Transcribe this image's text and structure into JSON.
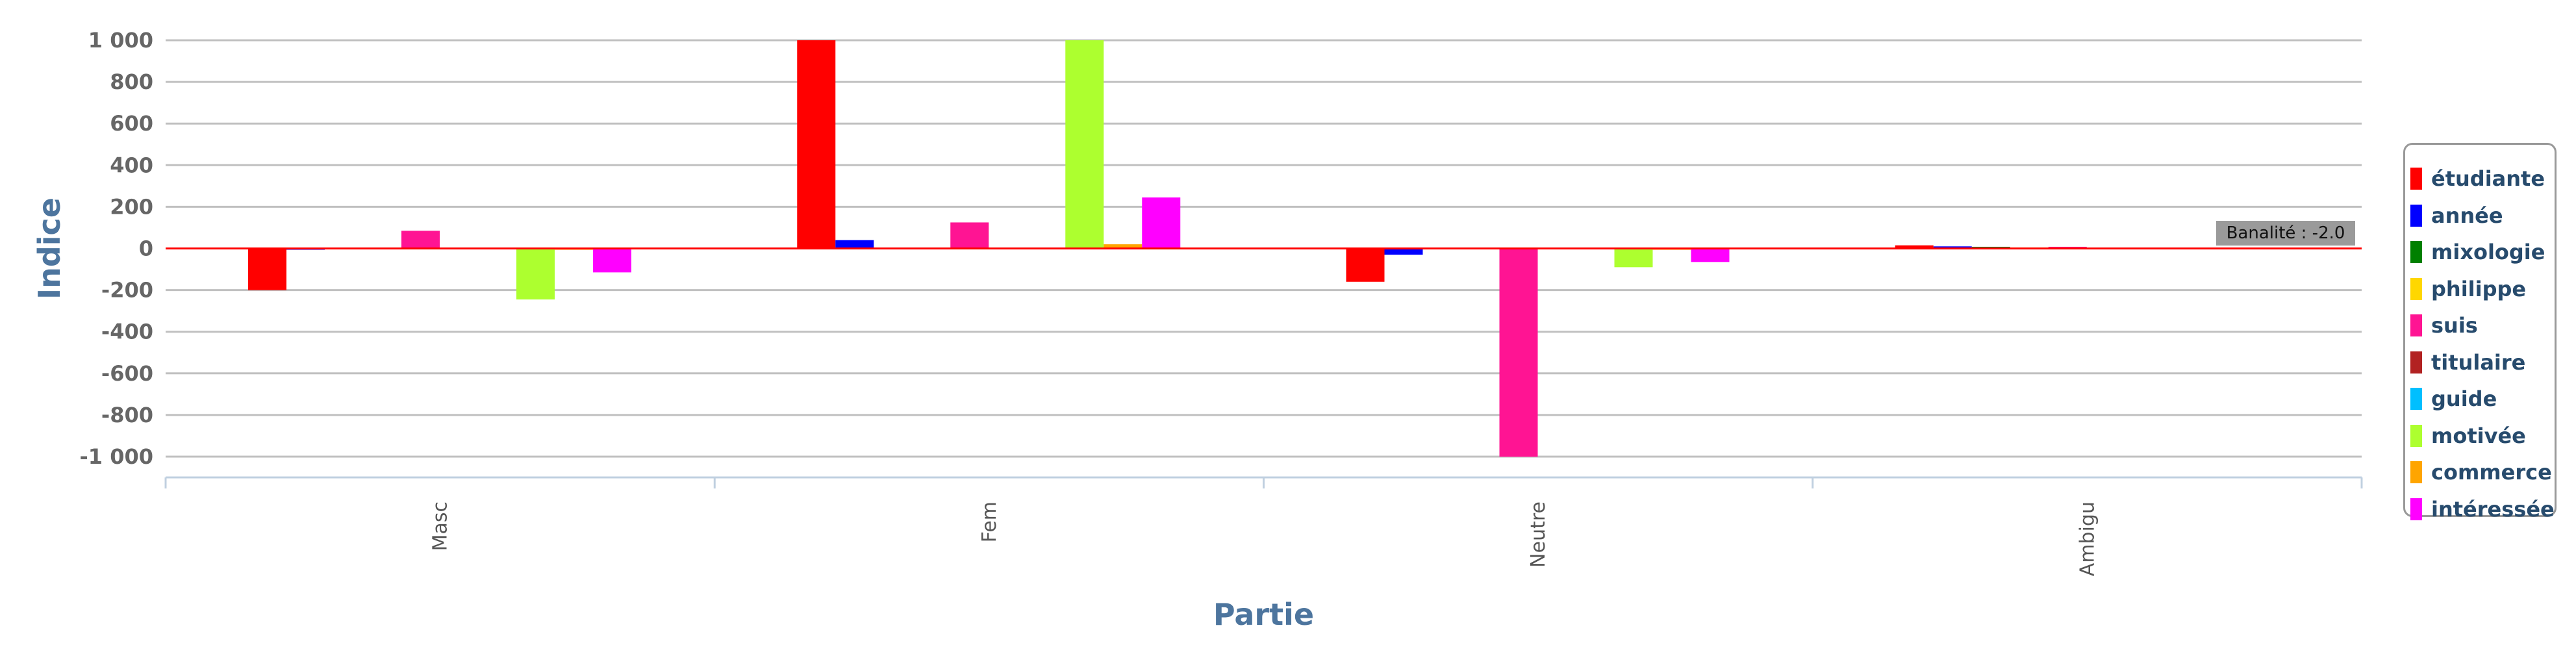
{
  "chart_data": {
    "type": "bar",
    "title": "",
    "xlabel": "Partie",
    "ylabel": "Indice",
    "ylim": [
      -1000,
      1000
    ],
    "yticks": [
      1000,
      800,
      600,
      400,
      200,
      0,
      -200,
      -400,
      -600,
      -800,
      -1000
    ],
    "ytick_labels": [
      "1 000",
      "800",
      "600",
      "400",
      "200",
      "0",
      "-200",
      "-400",
      "-600",
      "-800",
      "-1 000"
    ],
    "categories": [
      "Masc",
      "Fem",
      "Neutre",
      "Ambigu"
    ],
    "legend_position": "right",
    "grid": true,
    "series": [
      {
        "name": "étudiante",
        "color": "#ff0000",
        "values": [
          -200,
          1000,
          -160,
          15
        ]
      },
      {
        "name": "année",
        "color": "#0000ff",
        "values": [
          -5,
          40,
          -30,
          10
        ]
      },
      {
        "name": "mixologie",
        "color": "#008000",
        "values": [
          0,
          0,
          0,
          8
        ]
      },
      {
        "name": "philippe",
        "color": "#ffd700",
        "values": [
          0,
          0,
          0,
          5
        ]
      },
      {
        "name": "suis",
        "color": "#ff1493",
        "values": [
          85,
          125,
          -1000,
          8
        ]
      },
      {
        "name": "titulaire",
        "color": "#b22222",
        "values": [
          0,
          0,
          0,
          3
        ]
      },
      {
        "name": "guide",
        "color": "#00bfff",
        "values": [
          0,
          0,
          0,
          2
        ]
      },
      {
        "name": "motivée",
        "color": "#adff2f",
        "values": [
          -245,
          1000,
          -90,
          4
        ]
      },
      {
        "name": "commerce",
        "color": "#ffa500",
        "values": [
          -5,
          20,
          -5,
          3
        ]
      },
      {
        "name": "intéressée",
        "color": "#ff00ff",
        "values": [
          -115,
          245,
          -65,
          2
        ]
      }
    ],
    "tooltip_text": "Banalité : -2.0"
  }
}
